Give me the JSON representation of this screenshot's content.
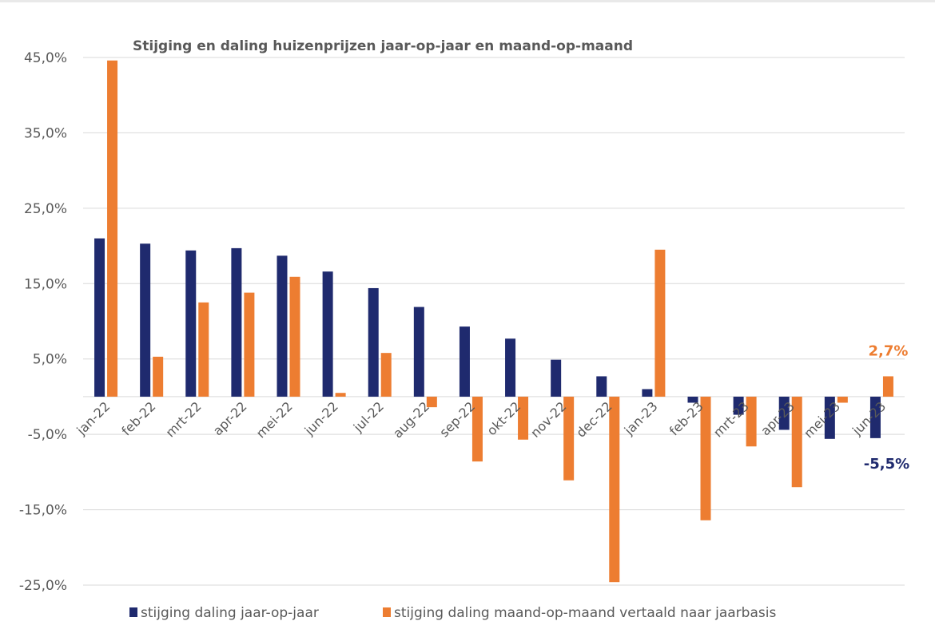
{
  "chart_data": {
    "type": "bar",
    "title": "Stijging en daling huizenprijzen jaar-op-jaar en maand-op-maand",
    "categories": [
      "jan-22",
      "feb-22",
      "mrt-22",
      "apr-22",
      "mei-22",
      "jun-22",
      "jul-22",
      "aug-22",
      "sep-22",
      "okt-22",
      "nov-22",
      "dec-22",
      "jan-23",
      "feb-23",
      "mrt-23",
      "apr-23",
      "mei-23",
      "jun-23"
    ],
    "series": [
      {
        "name": "stijging daling jaar-op-jaar",
        "color": "#1f2a6e",
        "values": [
          21.0,
          20.3,
          19.4,
          19.7,
          18.7,
          16.6,
          14.4,
          11.9,
          9.3,
          7.7,
          4.9,
          2.7,
          1.0,
          -0.8,
          -2.4,
          -4.4,
          -5.6,
          -5.5
        ]
      },
      {
        "name": "stijging daling maand-op-maand vertaald naar jaarbasis",
        "color": "#ed7d31",
        "values": [
          44.6,
          5.3,
          12.5,
          13.8,
          15.9,
          0.5,
          5.8,
          -1.4,
          -8.6,
          -5.7,
          -11.1,
          -24.6,
          19.5,
          -16.4,
          -6.6,
          -12.0,
          -0.8,
          2.7
        ]
      }
    ],
    "ylim": [
      -25,
      45
    ],
    "yticks": [
      "45,0%",
      "35,0%",
      "25,0%",
      "15,0%",
      "5,0%",
      "-5,0%",
      "-15,0%",
      "-25,0%"
    ],
    "data_labels": [
      {
        "series": 1,
        "index": 17,
        "text": "2,7%",
        "color": "#ed7d31"
      },
      {
        "series": 0,
        "index": 17,
        "text": "-5,5%",
        "color": "#1f2a6e"
      }
    ],
    "grid": true,
    "legend": "bottom",
    "xlabel": "",
    "ylabel": ""
  }
}
